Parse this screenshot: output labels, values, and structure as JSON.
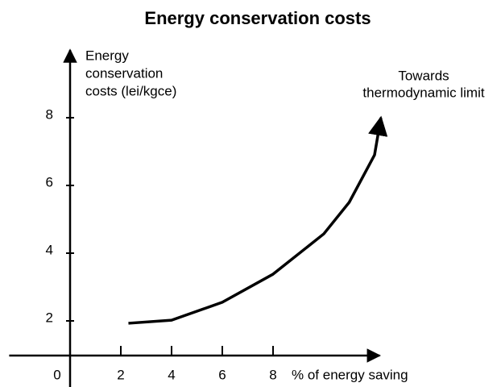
{
  "chart_data": {
    "type": "line",
    "title": "Energy conservation costs",
    "ylabel": [
      "Energy",
      "conservation",
      "costs (lei/kgce)"
    ],
    "xlabel": "% of energy saving",
    "annotation": [
      "Towards",
      "thermodynamic limit"
    ],
    "x": [
      2.3,
      4,
      6,
      8,
      10,
      11,
      12,
      12.25
    ],
    "series": [
      {
        "color": "#000000",
        "values": [
          1.93,
          2.02,
          2.55,
          3.38,
          4.57,
          5.5,
          6.9,
          8.0
        ]
      }
    ],
    "xlim": [
      -2.4,
      12.2
    ],
    "xticks": [
      0,
      2,
      4,
      6,
      8
    ],
    "ylim": [
      0,
      10
    ],
    "yticks": [
      2,
      4,
      6,
      8
    ]
  }
}
